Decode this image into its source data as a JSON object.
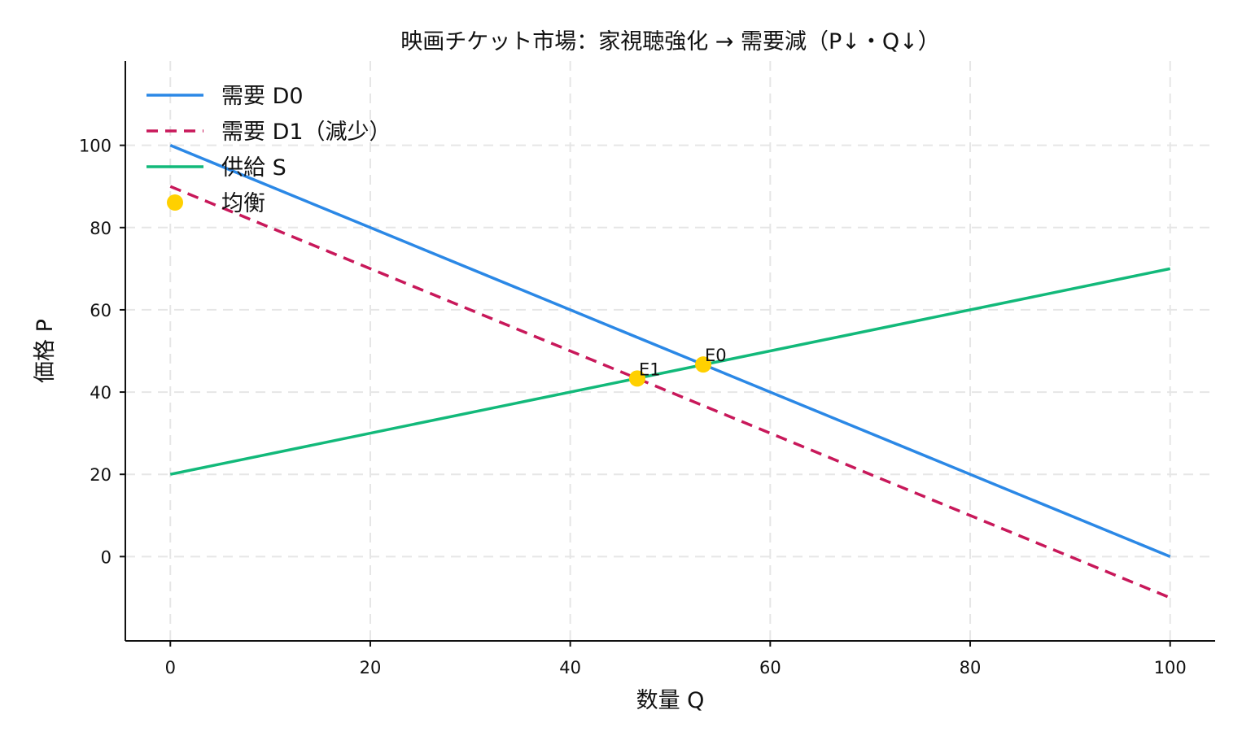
{
  "chart_data": {
    "type": "line",
    "title": "映画チケット市場：家視聴強化 → 需要減（P↓・Q↓）",
    "xlabel": "数量 Q",
    "ylabel": "価格 P",
    "xlim": [
      -4.5,
      104.5
    ],
    "ylim": [
      -20.5,
      120.5
    ],
    "xticks": [
      0,
      20,
      40,
      60,
      80,
      100
    ],
    "yticks": [
      0,
      20,
      40,
      60,
      80,
      100
    ],
    "grid": true,
    "legend_position": "top-left",
    "series": [
      {
        "name": "需要 D0",
        "style": "solid",
        "color": "#2b88e6",
        "x": [
          0,
          100
        ],
        "y": [
          100,
          0
        ]
      },
      {
        "name": "需要 D1（減少）",
        "style": "dashed",
        "color": "#c8185a",
        "x": [
          0,
          100
        ],
        "y": [
          90,
          -10
        ]
      },
      {
        "name": "供給 S",
        "style": "solid",
        "color": "#12b97a",
        "x": [
          0,
          100
        ],
        "y": [
          20,
          70
        ]
      }
    ],
    "points": {
      "name": "均衡",
      "color": "#ffd000",
      "items": [
        {
          "label": "E0",
          "x": 53.3,
          "y": 46.7
        },
        {
          "label": "E1",
          "x": 46.7,
          "y": 43.3
        }
      ]
    }
  }
}
